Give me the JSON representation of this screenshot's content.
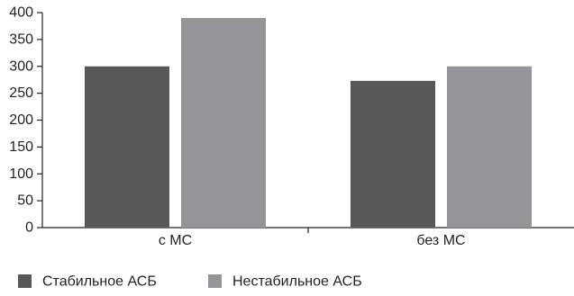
{
  "chart_data": {
    "type": "bar",
    "title": "",
    "xlabel": "",
    "ylabel": "",
    "categories": [
      "с МС",
      "без МС"
    ],
    "series": [
      {
        "name": "Стабильное АСБ",
        "values": [
          300,
          273
        ],
        "color": "#58585a"
      },
      {
        "name": "Нестабильное АСБ",
        "values": [
          390,
          300
        ],
        "color": "#939598"
      }
    ],
    "ylim": [
      0,
      400
    ],
    "yticks": [
      0,
      50,
      100,
      150,
      200,
      250,
      300,
      350,
      400
    ],
    "grid": false,
    "legend_position": "bottom-left"
  }
}
